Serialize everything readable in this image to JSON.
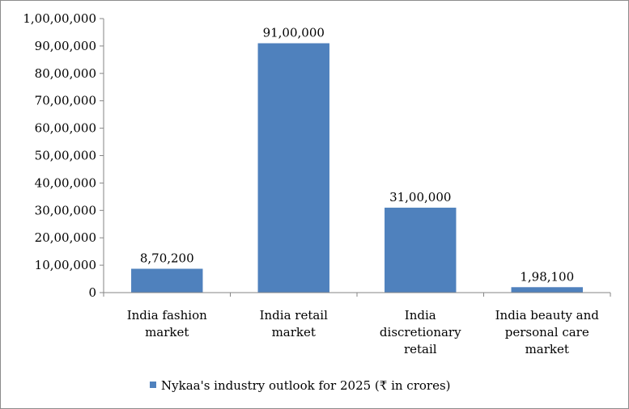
{
  "chart_data": {
    "type": "bar",
    "categories": [
      [
        "India fashion",
        "market"
      ],
      [
        "India retail",
        "market"
      ],
      [
        "India",
        "discretionary",
        "retail"
      ],
      [
        "India  beauty and",
        "personal care",
        "market"
      ]
    ],
    "series": [
      {
        "name": "Nykaa's industry outlook for 2025 (₹ in crores)",
        "values": [
          870200,
          9100000,
          3100000,
          198100
        ],
        "data_labels": [
          "8,70,200",
          "91,00,000",
          "31,00,000",
          "1,98,100"
        ],
        "color": "#4f81bd"
      }
    ],
    "ylim": [
      0,
      10000000
    ],
    "y_ticks": [
      0,
      1000000,
      2000000,
      3000000,
      4000000,
      5000000,
      6000000,
      7000000,
      8000000,
      9000000,
      10000000
    ],
    "y_tick_labels": [
      "0",
      "10,00,000",
      "20,00,000",
      "30,00,000",
      "40,00,000",
      "50,00,000",
      "60,00,000",
      "70,00,000",
      "80,00,000",
      "90,00,000",
      "1,00,00,000"
    ],
    "grid": false,
    "legend_position": "bottom",
    "axis_color": "#868686"
  }
}
